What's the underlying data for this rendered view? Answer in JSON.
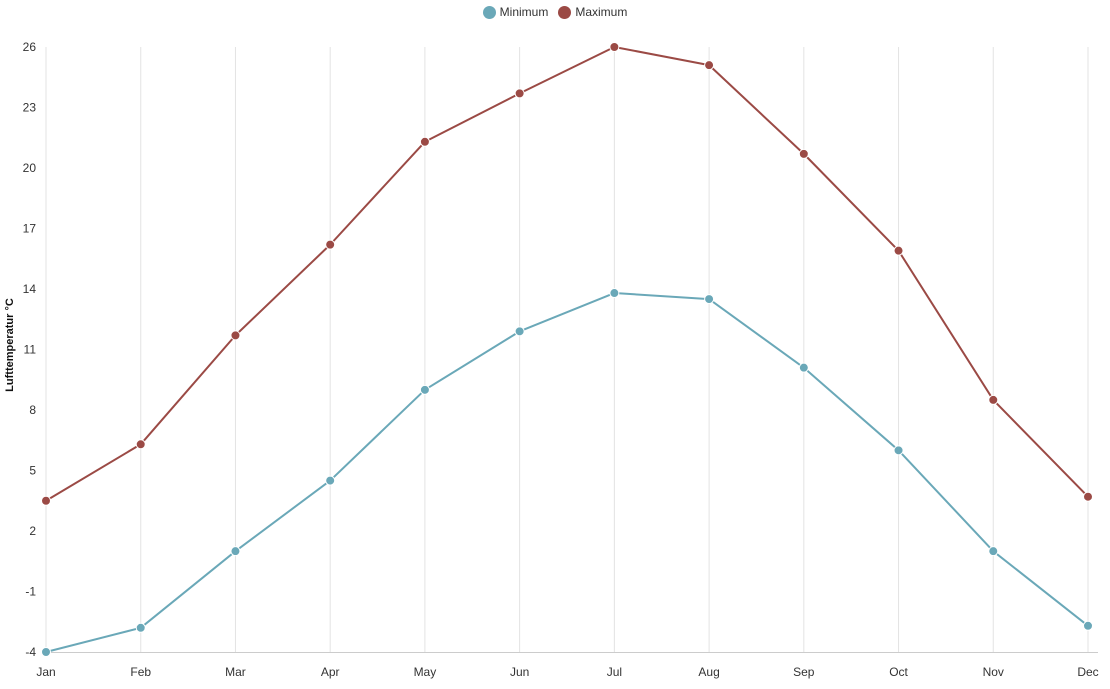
{
  "chart_data": {
    "type": "line",
    "categories": [
      "Jan",
      "Feb",
      "Mar",
      "Apr",
      "May",
      "Jun",
      "Jul",
      "Aug",
      "Sep",
      "Oct",
      "Nov",
      "Dec"
    ],
    "series": [
      {
        "name": "Minimum",
        "color": "#6aa8b8",
        "values": [
          -4.0,
          -2.8,
          1.0,
          4.5,
          9.0,
          11.9,
          13.8,
          13.5,
          10.1,
          6.0,
          1.0,
          -2.7
        ]
      },
      {
        "name": "Maximum",
        "color": "#9b4a45",
        "values": [
          3.5,
          6.3,
          11.7,
          16.2,
          21.3,
          23.7,
          26.0,
          25.1,
          20.7,
          15.9,
          8.5,
          3.7
        ]
      }
    ],
    "ylabel": "Lufttemperatur °C",
    "xlabel": "",
    "title": "",
    "yticks": [
      -4,
      -1,
      2,
      5,
      8,
      11,
      14,
      17,
      20,
      23,
      26
    ],
    "ylim": [
      -4,
      26
    ],
    "grid": "vertical",
    "legend_position": "top-center"
  }
}
